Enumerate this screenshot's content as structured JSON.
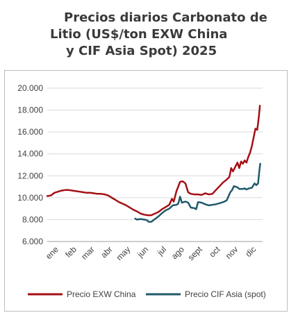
{
  "chart_data": {
    "type": "line",
    "title": [
      "Precios diarios Carbonato de",
      "Litio (US$/ton EXW China",
      "y CIF Asia Spot) 2025"
    ],
    "x_categories": [
      "ene",
      "feb",
      "mar",
      "abr",
      "may",
      "jun",
      "jul",
      "ago",
      "sept",
      "oct",
      "nov",
      "dic"
    ],
    "x_range": [
      0,
      12
    ],
    "y_ticks": [
      "20.000",
      "18.000",
      "16.000",
      "14.000",
      "12.000",
      "10.000",
      "8.000",
      "6.000"
    ],
    "ylim": [
      6000,
      20000
    ],
    "grid": {
      "horizontal": true,
      "vertical": false
    },
    "legend_position": "bottom",
    "series": [
      {
        "name": "Precio EXW China",
        "color": "#a50f15",
        "points": [
          [
            0.0,
            10150
          ],
          [
            0.2,
            10200
          ],
          [
            0.4,
            10450
          ],
          [
            0.6,
            10550
          ],
          [
            0.8,
            10650
          ],
          [
            1.0,
            10700
          ],
          [
            1.2,
            10700
          ],
          [
            1.4,
            10650
          ],
          [
            1.6,
            10600
          ],
          [
            1.8,
            10550
          ],
          [
            2.0,
            10500
          ],
          [
            2.2,
            10450
          ],
          [
            2.4,
            10450
          ],
          [
            2.6,
            10400
          ],
          [
            2.8,
            10350
          ],
          [
            3.0,
            10350
          ],
          [
            3.2,
            10300
          ],
          [
            3.4,
            10200
          ],
          [
            3.6,
            10000
          ],
          [
            3.8,
            9800
          ],
          [
            4.0,
            9600
          ],
          [
            4.2,
            9450
          ],
          [
            4.4,
            9300
          ],
          [
            4.6,
            9100
          ],
          [
            4.8,
            8900
          ],
          [
            5.0,
            8750
          ],
          [
            5.2,
            8550
          ],
          [
            5.4,
            8450
          ],
          [
            5.6,
            8400
          ],
          [
            5.8,
            8400
          ],
          [
            6.0,
            8550
          ],
          [
            6.2,
            8700
          ],
          [
            6.4,
            8950
          ],
          [
            6.6,
            9150
          ],
          [
            6.8,
            9350
          ],
          [
            6.95,
            9900
          ],
          [
            7.05,
            9650
          ],
          [
            7.2,
            10600
          ],
          [
            7.4,
            11450
          ],
          [
            7.55,
            11500
          ],
          [
            7.7,
            11300
          ],
          [
            7.85,
            10500
          ],
          [
            8.0,
            10350
          ],
          [
            8.2,
            10300
          ],
          [
            8.4,
            10300
          ],
          [
            8.6,
            10250
          ],
          [
            8.8,
            10400
          ],
          [
            9.0,
            10300
          ],
          [
            9.2,
            10350
          ],
          [
            9.4,
            10700
          ],
          [
            9.6,
            11050
          ],
          [
            9.8,
            11400
          ],
          [
            10.0,
            11650
          ],
          [
            10.15,
            11900
          ],
          [
            10.25,
            12700
          ],
          [
            10.35,
            12400
          ],
          [
            10.5,
            12900
          ],
          [
            10.6,
            13200
          ],
          [
            10.7,
            12700
          ],
          [
            10.8,
            13300
          ],
          [
            10.9,
            13100
          ],
          [
            11.0,
            13400
          ],
          [
            11.1,
            13200
          ],
          [
            11.2,
            13700
          ],
          [
            11.3,
            14100
          ],
          [
            11.4,
            14700
          ],
          [
            11.5,
            15500
          ],
          [
            11.6,
            16300
          ],
          [
            11.7,
            16200
          ],
          [
            11.8,
            17500
          ],
          [
            11.85,
            18400
          ]
        ]
      },
      {
        "name": "Precio CIF Asia (spot)",
        "color": "#1f5a6a",
        "points": [
          [
            4.9,
            8100
          ],
          [
            5.0,
            8000
          ],
          [
            5.2,
            8050
          ],
          [
            5.4,
            8000
          ],
          [
            5.55,
            7950
          ],
          [
            5.65,
            7800
          ],
          [
            5.8,
            7800
          ],
          [
            6.0,
            8050
          ],
          [
            6.2,
            8300
          ],
          [
            6.4,
            8600
          ],
          [
            6.6,
            8850
          ],
          [
            6.8,
            9000
          ],
          [
            7.0,
            9300
          ],
          [
            7.2,
            9350
          ],
          [
            7.3,
            9450
          ],
          [
            7.4,
            10100
          ],
          [
            7.5,
            9550
          ],
          [
            7.7,
            9650
          ],
          [
            7.85,
            9550
          ],
          [
            8.0,
            9100
          ],
          [
            8.2,
            9050
          ],
          [
            8.3,
            8950
          ],
          [
            8.4,
            9600
          ],
          [
            8.6,
            9550
          ],
          [
            8.8,
            9400
          ],
          [
            9.0,
            9300
          ],
          [
            9.2,
            9350
          ],
          [
            9.4,
            9400
          ],
          [
            9.6,
            9500
          ],
          [
            9.8,
            9600
          ],
          [
            10.0,
            9750
          ],
          [
            10.2,
            10500
          ],
          [
            10.3,
            10700
          ],
          [
            10.4,
            11050
          ],
          [
            10.5,
            11000
          ],
          [
            10.6,
            10950
          ],
          [
            10.7,
            10800
          ],
          [
            10.9,
            10800
          ],
          [
            11.0,
            10850
          ],
          [
            11.1,
            10750
          ],
          [
            11.25,
            10850
          ],
          [
            11.4,
            10900
          ],
          [
            11.55,
            11300
          ],
          [
            11.65,
            11150
          ],
          [
            11.75,
            11300
          ],
          [
            11.82,
            12500
          ],
          [
            11.87,
            13100
          ]
        ]
      }
    ]
  }
}
